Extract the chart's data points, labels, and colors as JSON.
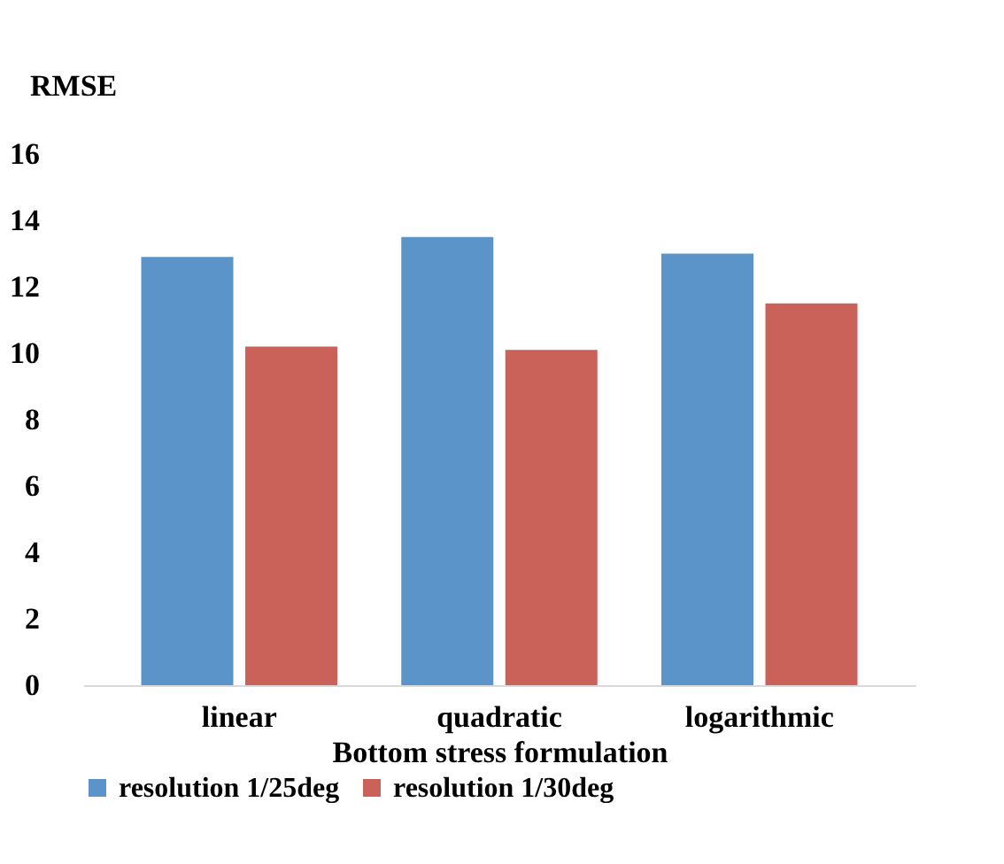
{
  "chart_data": {
    "type": "bar",
    "ylabel": "RMSE",
    "xlabel": "Bottom stress formulation",
    "categories": [
      "linear",
      "quadratic",
      "logarithmic"
    ],
    "series": [
      {
        "name": "resolution 1/25deg",
        "color": "#5b94c9",
        "values": [
          12.9,
          13.5,
          13.0
        ]
      },
      {
        "name": "resolution 1/30deg",
        "color": "#cb625a",
        "values": [
          10.2,
          10.1,
          11.5
        ]
      }
    ],
    "ylim": [
      0,
      16
    ],
    "yticks": [
      0,
      2,
      4,
      6,
      8,
      10,
      12,
      14,
      16
    ],
    "grid": false,
    "legend": "bottom"
  }
}
